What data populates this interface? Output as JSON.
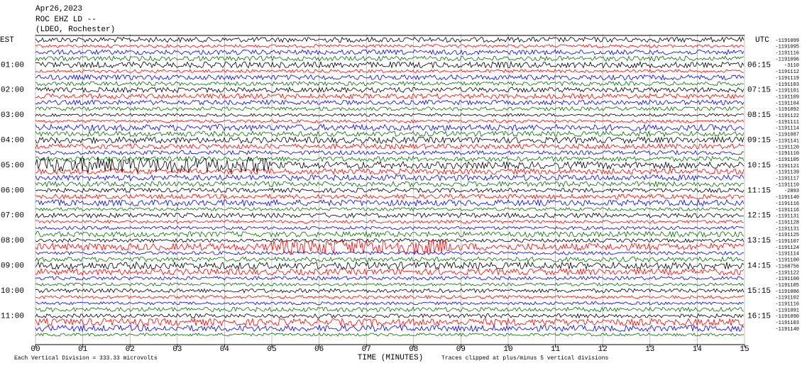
{
  "chart_data": {
    "type": "helicorder",
    "title_lines": [
      "Apr26,2023",
      "ROC EHZ LD --",
      "(LDEO, Rochester)"
    ],
    "left_zone": "EST",
    "right_zone": "UTC",
    "left_labels": [
      "01:00",
      "02:00",
      "03:00",
      "04:00",
      "05:00",
      "06:00",
      "07:00",
      "08:00",
      "09:00",
      "10:00",
      "11:00"
    ],
    "right_labels": [
      "06:15",
      "07:15",
      "08:15",
      "09:15",
      "10:15",
      "11:15",
      "12:15",
      "13:15",
      "14:15",
      "15:15",
      "16:15"
    ],
    "trace_offsets": [
      -1191099,
      -1191095,
      -1191116,
      -1191096,
      -3110,
      -1191112,
      -1191119,
      -1191103,
      -1191101,
      -1191109,
      -1191104,
      -1191092,
      -1191122,
      -1191111,
      -1191114,
      -1191087,
      -1191141,
      -1191120,
      -1191110,
      -1191105,
      -1191121,
      -1191139,
      -1191117,
      -1191110,
      -2893,
      -1191140,
      -1191116,
      -1191116,
      -1191131,
      -1191128,
      -1191131,
      -1191125,
      -1191107,
      -1191124,
      -1191114,
      -1191100,
      -1168756,
      -1191122,
      -1191100,
      -1191105,
      -1191086,
      -1191102,
      -1191116,
      -1191091,
      -1191090,
      -1191103,
      -1191140
    ],
    "trace_colors": [
      "#000000",
      "#ff0000",
      "#0000ff",
      "#007000"
    ],
    "xlim": [
      0,
      15
    ],
    "xticks": [
      {
        "value": 0,
        "label": "00"
      },
      {
        "value": 1,
        "label": "01"
      },
      {
        "value": 2,
        "label": "02"
      },
      {
        "value": 3,
        "label": "03"
      },
      {
        "value": 4,
        "label": "04"
      },
      {
        "value": 5,
        "label": "05"
      },
      {
        "value": 6,
        "label": "06"
      },
      {
        "value": 7,
        "label": "07"
      },
      {
        "value": 8,
        "label": "08"
      },
      {
        "value": 9,
        "label": "09"
      },
      {
        "value": 10,
        "label": "10"
      },
      {
        "value": 11,
        "label": "11"
      },
      {
        "value": 12,
        "label": "12"
      },
      {
        "value": 13,
        "label": "13"
      },
      {
        "value": 14,
        "label": "14"
      },
      {
        "value": 15,
        "label": "15"
      }
    ],
    "xlabel": "TIME (MINUTES)",
    "scale_note": "Each Vertical Division =  333.33 microvolts",
    "clip_note": "Traces clipped at plus/minus 5 vertical divisions",
    "grid": true
  }
}
